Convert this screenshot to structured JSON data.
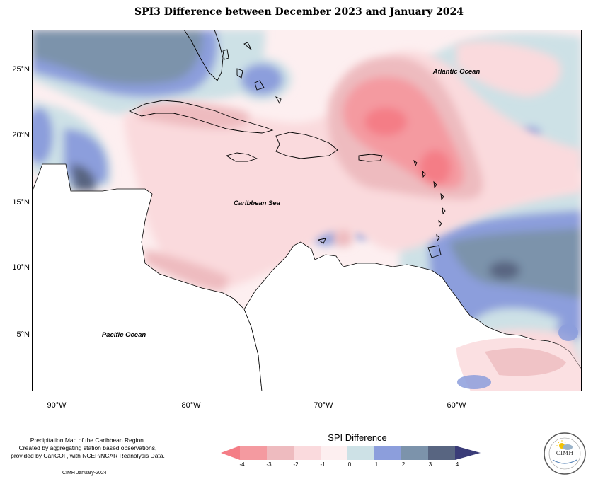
{
  "title": "SPI3 Difference between December 2023 and January 2024",
  "map": {
    "x_ticks": [
      "90°W",
      "80°W",
      "70°W",
      "60°W"
    ],
    "y_ticks": [
      "25°N",
      "20°N",
      "15°N",
      "10°N",
      "5°N"
    ],
    "labels": {
      "atlantic": "Atlantic Ocean",
      "caribbean": "Caribbean Sea",
      "pacific": "Pacific Ocean"
    },
    "extent": {
      "lon": [
        -92,
        -51
      ],
      "lat": [
        1,
        28
      ]
    }
  },
  "legend": {
    "title": "SPI Difference",
    "ticks": [
      "-4",
      "-3",
      "-2",
      "-1",
      "0",
      "1",
      "2",
      "3",
      "4"
    ],
    "colors": {
      "lt_-4": "#f47d86",
      "-4_-3": "#f49aa0",
      "-3_-2": "#eebbbf",
      "-2_-1": "#fadadd",
      "-1_0": "#fdeff0",
      "0_1": "#cde1e6",
      "1_2": "#8c9edc",
      "2_3": "#7c93ab",
      "3_4": "#586581",
      "gt_4": "#3a3c78"
    }
  },
  "footnote": {
    "line1": "Precipitation Map of the Caribbean Region.",
    "line2": "Created by aggregating station based observations,",
    "line3": "provided by CariCOF, with NCEP/NCAR Reanalysis Data.",
    "credit": "CIMH January-2024"
  },
  "logo": {
    "text": "CIMH"
  }
}
